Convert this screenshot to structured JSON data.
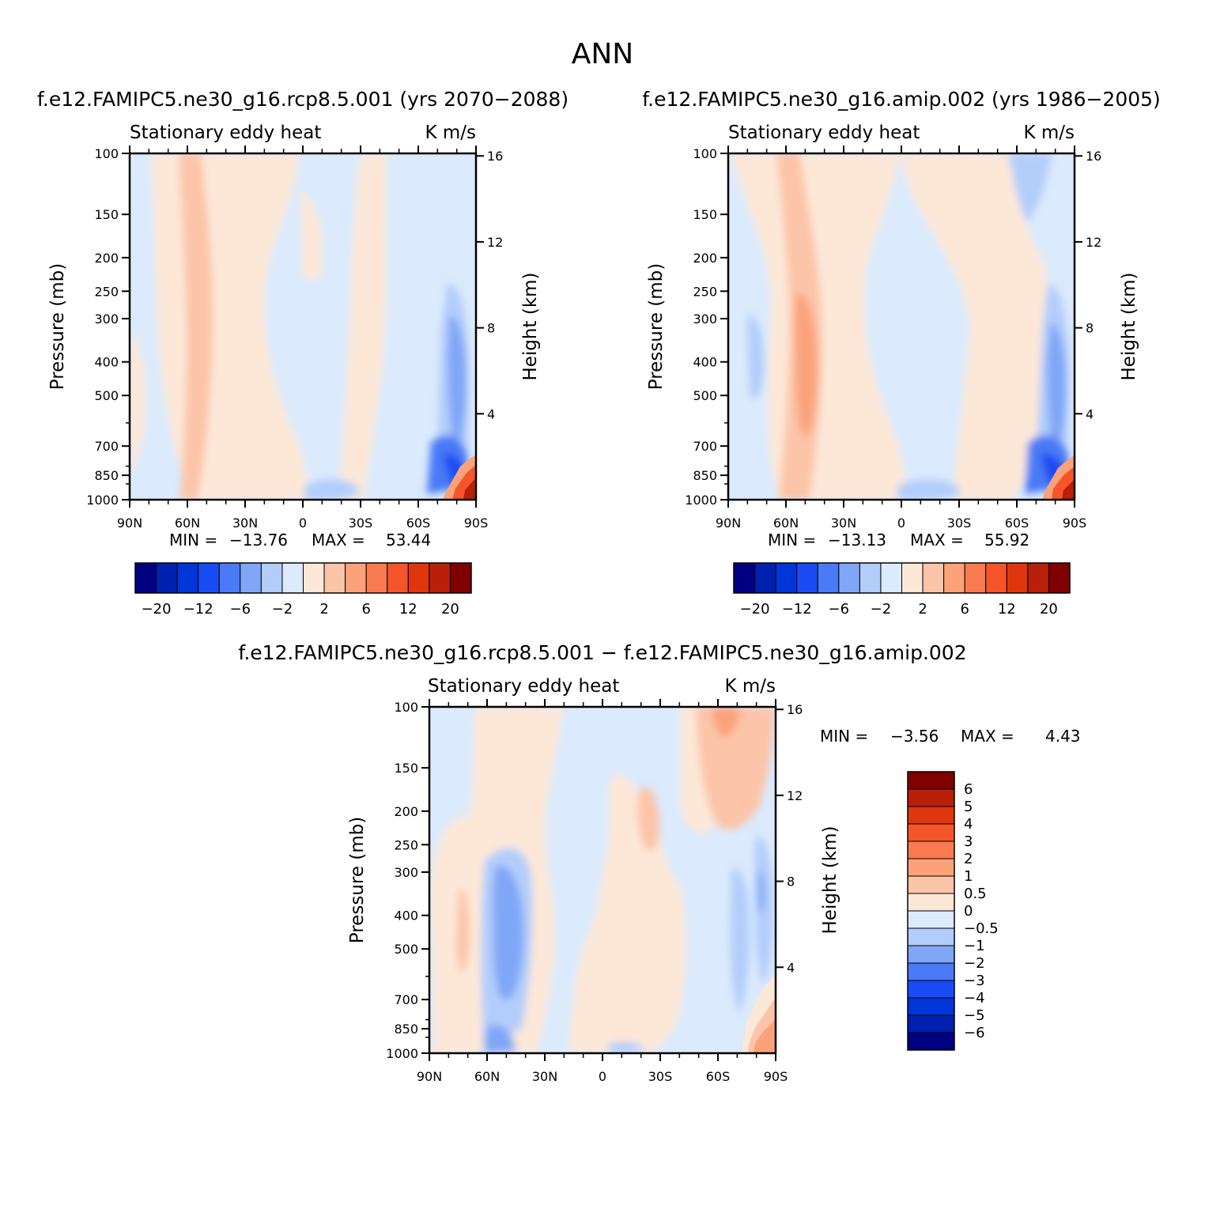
{
  "figure_title": "ANN",
  "panels": [
    {
      "title": "f.e12.FAMIPC5.ne30_g16.rcp8.5.001 (yrs 2070-2088)",
      "subtitle_left": "Stationary eddy heat",
      "subtitle_right": "K m/s",
      "min_label": "MIN = ",
      "min_value": "-13.76",
      "max_label": "MAX = ",
      "max_value": "53.44"
    },
    {
      "title": "f.e12.FAMIPC5.ne30_g16.amip.002 (yrs 1986-2005)",
      "subtitle_left": "Stationary eddy heat",
      "subtitle_right": "K m/s",
      "min_label": "MIN = ",
      "min_value": "-13.13",
      "max_label": "MAX = ",
      "max_value": "55.92"
    },
    {
      "title": "f.e12.FAMIPC5.ne30_g16.rcp8.5.001 - f.e12.FAMIPC5.ne30_g16.amip.002",
      "subtitle_left": "Stationary eddy heat",
      "subtitle_right": "K m/s",
      "min_label": "MIN = ",
      "min_value": "-3.56",
      "max_label": "MAX = ",
      "max_value": "4.43"
    }
  ],
  "axes": {
    "ylabel": "Pressure (mb)",
    "ylabel_right": "Height (km)",
    "pressure_ticks": [
      100,
      150,
      200,
      250,
      300,
      400,
      500,
      700,
      850,
      1000
    ],
    "height_ticks": [
      4,
      8,
      12,
      16
    ],
    "lat_ticks": [
      "90N",
      "60N",
      "30N",
      "0",
      "30S",
      "60S",
      "90S"
    ]
  },
  "colorbar_main": {
    "labels": [
      "-20",
      "-12",
      "-6",
      "-2",
      "2",
      "6",
      "12",
      "20"
    ],
    "colors": [
      "#000080",
      "#0020b0",
      "#0035d8",
      "#1a4cf5",
      "#4a7af5",
      "#80a6f7",
      "#b3cdfb",
      "#dbeafd",
      "#fde8d8",
      "#fcc4a8",
      "#fba27a",
      "#f97a50",
      "#f5552a",
      "#e0360e",
      "#b8200a",
      "#800000"
    ]
  },
  "colorbar_diff": {
    "labels": [
      "6",
      "5",
      "4",
      "3",
      "2",
      "1",
      "0.5",
      "0",
      "-0.5",
      "-1",
      "-2",
      "-3",
      "-4",
      "-5",
      "-6"
    ],
    "colors": [
      "#800000",
      "#b8200a",
      "#e0360e",
      "#f5552a",
      "#f97a50",
      "#fba27a",
      "#fcc4a8",
      "#fde8d8",
      "#dbeafd",
      "#b3cdfb",
      "#80a6f7",
      "#4a7af5",
      "#1a4cf5",
      "#0035d8",
      "#0020b0",
      "#000080"
    ]
  },
  "chart_data": [
    {
      "type": "heatmap",
      "title": "f.e12.FAMIPC5.ne30_g16.rcp8.5.001 (yrs 2070-2088)",
      "xlabel": "",
      "ylabel": "Pressure (mb)",
      "x_categories": [
        "90N",
        "60N",
        "30N",
        "0",
        "30S",
        "60S",
        "90S"
      ],
      "ylim": [
        1000,
        100
      ],
      "y_scale": "log",
      "min": -13.76,
      "max": 53.44,
      "features": [
        {
          "lat_from": 65,
          "lat_to": 52,
          "p_from": 100,
          "p_to": 1000,
          "level": 2
        },
        {
          "lat_from": 90,
          "lat_to": 0,
          "p_from": 100,
          "p_to": 1000,
          "level": 0.5
        },
        {
          "lat_from": -72,
          "lat_to": -88,
          "p_from": 250,
          "p_to": 700,
          "level": -4
        },
        {
          "lat_from": -78,
          "lat_to": -90,
          "p_from": 850,
          "p_to": 1000,
          "level": 20
        }
      ]
    },
    {
      "type": "heatmap",
      "title": "f.e12.FAMIPC5.ne30_g16.amip.002 (yrs 1986-2005)",
      "xlabel": "",
      "ylabel": "Pressure (mb)",
      "x_categories": [
        "90N",
        "60N",
        "30N",
        "0",
        "30S",
        "60S",
        "90S"
      ],
      "ylim": [
        1000,
        100
      ],
      "y_scale": "log",
      "min": -13.13,
      "max": 55.92,
      "features": [
        {
          "lat_from": 55,
          "lat_to": 42,
          "p_from": 250,
          "p_to": 600,
          "level": 6
        },
        {
          "lat_from": -70,
          "lat_to": -88,
          "p_from": 300,
          "p_to": 850,
          "level": -4
        },
        {
          "lat_from": -78,
          "lat_to": -90,
          "p_from": 850,
          "p_to": 1000,
          "level": 20
        }
      ]
    },
    {
      "type": "heatmap",
      "title": "f.e12.FAMIPC5.ne30_g16.rcp8.5.001 - f.e12.FAMIPC5.ne30_g16.amip.002",
      "xlabel": "",
      "ylabel": "Pressure (mb)",
      "x_categories": [
        "90N",
        "60N",
        "30N",
        "0",
        "30S",
        "60S",
        "90S"
      ],
      "ylim": [
        1000,
        100
      ],
      "y_scale": "log",
      "min": -3.56,
      "max": 4.43,
      "features": [
        {
          "lat_from": 60,
          "lat_to": 45,
          "p_from": 250,
          "p_to": 1000,
          "level": -1
        },
        {
          "lat_from": -55,
          "lat_to": -75,
          "p_from": 100,
          "p_to": 200,
          "level": 1
        },
        {
          "lat_from": -78,
          "lat_to": -90,
          "p_from": 700,
          "p_to": 1000,
          "level": 2
        }
      ]
    }
  ]
}
